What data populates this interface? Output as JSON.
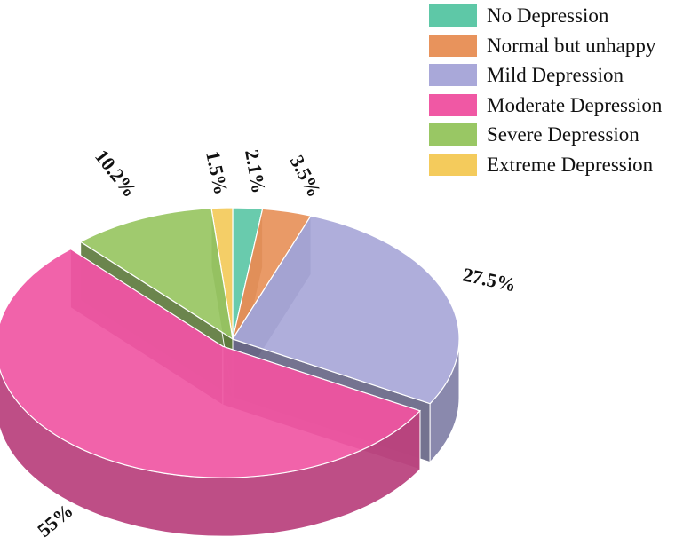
{
  "chart_data": {
    "type": "pie",
    "title": "",
    "style": "3d-exploded",
    "legend_position": "top-right",
    "categories": [
      "No Depression",
      "Normal but unhappy",
      "Mild Depression",
      "Moderate Depression",
      "Severe Depression",
      "Extreme Depression"
    ],
    "values": [
      2.1,
      3.5,
      27.5,
      55,
      10.2,
      1.5
    ],
    "labels": [
      "2.1%",
      "3.5%",
      "27.5%",
      "55%",
      "10.2%",
      "1.5%"
    ],
    "colors": [
      "#5ec8a7",
      "#e8935c",
      "#a9a8d9",
      "#f058a4",
      "#99c764",
      "#f4cb5c"
    ]
  }
}
